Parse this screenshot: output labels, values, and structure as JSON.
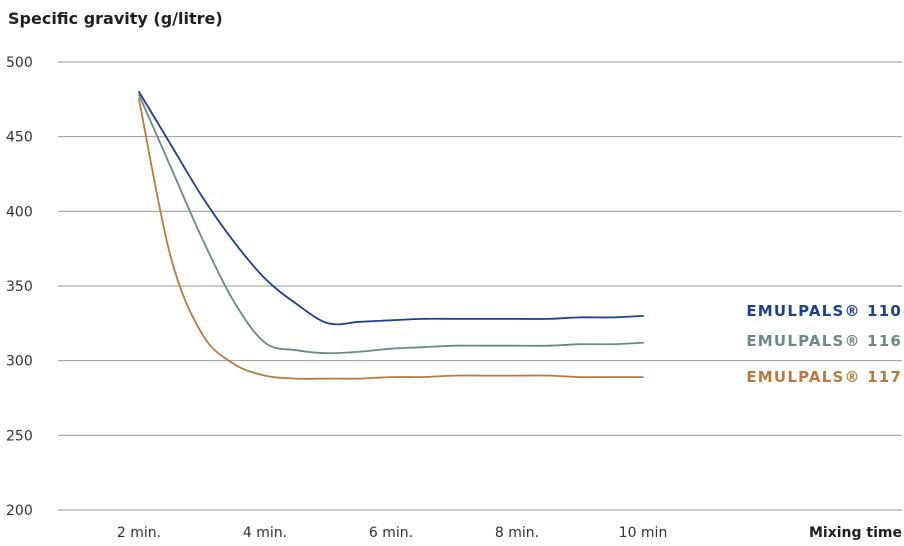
{
  "chart_data": {
    "type": "line",
    "title": "Specific gravity (g/litre)",
    "xlabel": "Mixing time",
    "ylabel": "",
    "categories": [
      "2 min.",
      "4 min.",
      "6 min.",
      "8 min.",
      "10 min"
    ],
    "x": [
      2,
      2.5,
      3,
      3.5,
      4,
      4.5,
      5,
      5.5,
      6,
      6.5,
      7,
      7.5,
      8,
      8.5,
      9,
      9.5,
      10
    ],
    "ylim": [
      200,
      500
    ],
    "yticks": [
      200,
      250,
      300,
      350,
      400,
      450,
      500
    ],
    "grid": true,
    "legend_position": "right",
    "series": [
      {
        "name": "EMULPALS® 110",
        "color": "#1f3f8f",
        "values": [
          480,
          445,
          410,
          380,
          355,
          338,
          325,
          326,
          327,
          328,
          328,
          328,
          328,
          328,
          329,
          329,
          330
        ]
      },
      {
        "name": "EMULPALS® 116",
        "color": "#6b8a86",
        "values": [
          478,
          430,
          382,
          340,
          312,
          307,
          305,
          306,
          308,
          309,
          310,
          310,
          310,
          310,
          311,
          311,
          312
        ]
      },
      {
        "name": "EMULPALS® 117",
        "color": "#b87a3e",
        "values": [
          475,
          370,
          318,
          298,
          290,
          288,
          288,
          288,
          289,
          289,
          290,
          290,
          290,
          290,
          289,
          289,
          289
        ]
      }
    ]
  }
}
